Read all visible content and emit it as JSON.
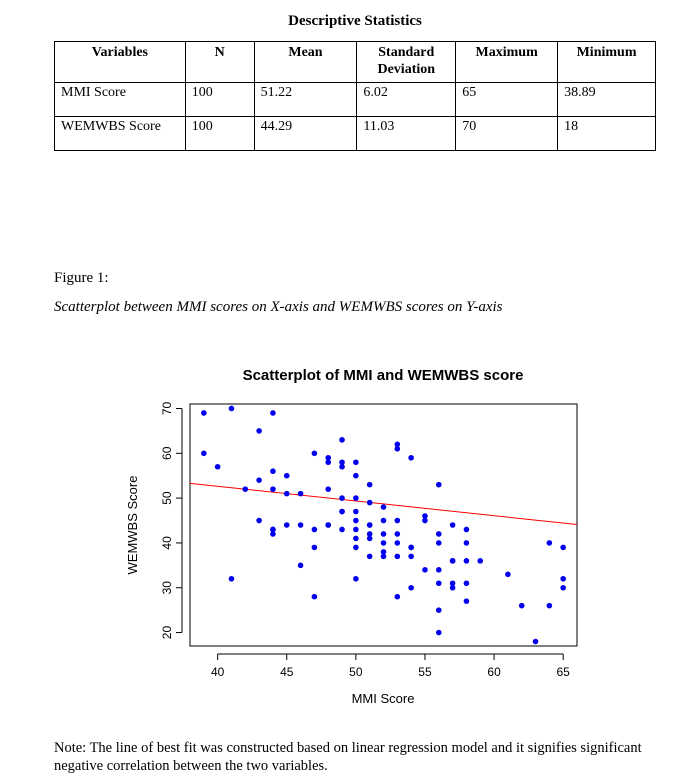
{
  "table": {
    "title": "Descriptive Statistics",
    "headers": [
      "Variables",
      "N",
      "Mean",
      "Standard Deviation",
      "Maximum",
      "Minimum"
    ],
    "rows": [
      [
        "MMI Score",
        "100",
        "51.22",
        "6.02",
        "65",
        "38.89"
      ],
      [
        "WEMWBS Score",
        "100",
        "44.29",
        "11.03",
        "70",
        "18"
      ]
    ]
  },
  "figure": {
    "label": "Figure 1:",
    "caption": "Scatterplot between MMI scores on X-axis and WEMWBS scores on Y-axis"
  },
  "note": "Note: The line of best fit was constructed based on linear regression model and it signifies significant negative correlation between the two variables.",
  "chart_data": {
    "type": "scatter",
    "title": "Scatterplot of MMI and WEMWBS score",
    "xlabel": "MMI Score",
    "ylabel": "WEMWBS Score",
    "xlim": [
      38,
      66
    ],
    "ylim": [
      17,
      71
    ],
    "xticks": [
      40,
      45,
      50,
      55,
      60,
      65
    ],
    "yticks": [
      20,
      30,
      40,
      50,
      60,
      70
    ],
    "grid": false,
    "point_color": "#0000ee",
    "line_color": "#ff0000",
    "fit_line": [
      [
        38,
        53.3
      ],
      [
        66,
        44.1
      ]
    ],
    "x": [
      39,
      41,
      44,
      39,
      40,
      43,
      41,
      42,
      43,
      44,
      44,
      44,
      45,
      45,
      45,
      44,
      43,
      44,
      46,
      47,
      46,
      47,
      47,
      48,
      48,
      48,
      49,
      49,
      49,
      49,
      49,
      50,
      50,
      50,
      50,
      50,
      50,
      50,
      51,
      51,
      51,
      51,
      51,
      52,
      52,
      52,
      52,
      52,
      53,
      53,
      53,
      53,
      53,
      53,
      54,
      54,
      54,
      54,
      55,
      55,
      55,
      56,
      56,
      56,
      56,
      56,
      56,
      57,
      57,
      57,
      57,
      58,
      58,
      58,
      58,
      58,
      59,
      61,
      62,
      63,
      64,
      64,
      65,
      65,
      65,
      48,
      49,
      50,
      51,
      52,
      53,
      54,
      56,
      57,
      46,
      47,
      48,
      49,
      50,
      51
    ],
    "y": [
      69,
      70,
      69,
      60,
      57,
      65,
      32,
      52,
      54,
      56,
      52,
      42,
      55,
      51,
      44,
      43,
      45,
      43,
      35,
      60,
      51,
      43,
      28,
      59,
      58,
      52,
      63,
      58,
      57,
      50,
      43,
      58,
      55,
      50,
      45,
      41,
      39,
      32,
      53,
      49,
      44,
      42,
      37,
      48,
      45,
      40,
      38,
      37,
      62,
      61,
      45,
      40,
      37,
      28,
      59,
      39,
      37,
      30,
      46,
      45,
      34,
      53,
      42,
      34,
      31,
      25,
      20,
      44,
      36,
      31,
      30,
      43,
      40,
      36,
      31,
      27,
      36,
      33,
      26,
      18,
      40,
      26,
      39,
      32,
      30,
      44,
      47,
      47,
      44,
      42,
      42,
      39,
      40,
      36,
      44,
      39,
      44,
      47,
      43,
      41
    ]
  }
}
